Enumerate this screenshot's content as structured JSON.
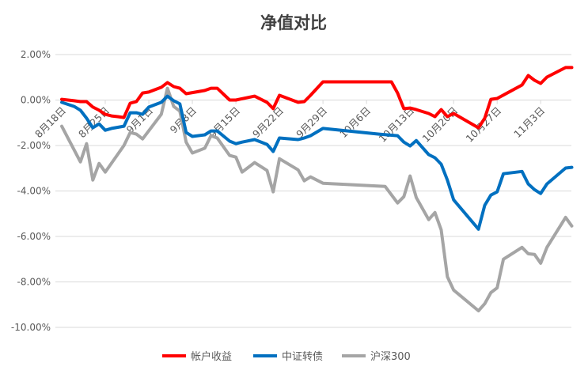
{
  "chart_data": {
    "type": "line",
    "title": "净值对比",
    "xlabel": "",
    "ylabel": "",
    "x_unit": "trading-day offset from 8月18日",
    "ylim": [
      -10,
      2
    ],
    "yticks": [
      2,
      0,
      -2,
      -4,
      -6,
      -8,
      -10
    ],
    "ytick_labels": [
      "2.00%",
      "0.00%",
      "-2.00%",
      "-4.00%",
      "-6.00%",
      "-8.00%",
      "-10.00%"
    ],
    "xlim": [
      -1,
      82.5
    ],
    "xticks": [
      0,
      7,
      14,
      21,
      28,
      35,
      42,
      49,
      56,
      63,
      70,
      77
    ],
    "xtick_labels": [
      "8月18日",
      "8月25日",
      "9月1日",
      "9月8日",
      "9月15日",
      "9月22日",
      "9月29日",
      "10月6日",
      "10月13日",
      "10月20日",
      "10月27日",
      "11月3日"
    ],
    "grid": true,
    "legend_position": "bottom",
    "series": [
      {
        "name": "帐户收益",
        "color": "#ff0000",
        "points": [
          [
            0,
            0.03
          ],
          [
            2,
            -0.03
          ],
          [
            3,
            -0.07
          ],
          [
            4,
            -0.07
          ],
          [
            5,
            -0.31
          ],
          [
            6,
            -0.45
          ],
          [
            7,
            -0.63
          ],
          [
            8,
            -0.7
          ],
          [
            9,
            -0.73
          ],
          [
            10,
            -0.77
          ],
          [
            11,
            -0.14
          ],
          [
            12,
            -0.07
          ],
          [
            13,
            0.31
          ],
          [
            14,
            0.35
          ],
          [
            16,
            0.56
          ],
          [
            17,
            0.77
          ],
          [
            18,
            0.59
          ],
          [
            19,
            0.52
          ],
          [
            20,
            0.28
          ],
          [
            23,
            0.42
          ],
          [
            24,
            0.52
          ],
          [
            25,
            0.52
          ],
          [
            27,
            0.0
          ],
          [
            28,
            0.0
          ],
          [
            31,
            0.17
          ],
          [
            33,
            -0.1
          ],
          [
            34,
            -0.38
          ],
          [
            35,
            0.21
          ],
          [
            38,
            -0.1
          ],
          [
            39,
            -0.07
          ],
          [
            40,
            0.21
          ],
          [
            42,
            0.8
          ],
          [
            53,
            0.8
          ],
          [
            54,
            0.31
          ],
          [
            55,
            -0.38
          ],
          [
            56,
            -0.35
          ],
          [
            57,
            -0.42
          ],
          [
            59,
            -0.59
          ],
          [
            60,
            -0.73
          ],
          [
            61,
            -0.42
          ],
          [
            62,
            -0.73
          ],
          [
            63,
            -0.59
          ],
          [
            67,
            -1.22
          ],
          [
            68,
            -0.8
          ],
          [
            69,
            0.03
          ],
          [
            70,
            0.07
          ],
          [
            74,
            0.66
          ],
          [
            75,
            1.08
          ],
          [
            76,
            0.87
          ],
          [
            77,
            0.73
          ],
          [
            78,
            1.01
          ],
          [
            81,
            1.43
          ],
          [
            82,
            1.43
          ]
        ]
      },
      {
        "name": "中证转债",
        "color": "#0070c0",
        "points": [
          [
            0,
            -0.1
          ],
          [
            2,
            -0.28
          ],
          [
            3,
            -0.45
          ],
          [
            4,
            -0.8
          ],
          [
            5,
            -1.22
          ],
          [
            6,
            -1.05
          ],
          [
            7,
            -1.33
          ],
          [
            8,
            -1.25
          ],
          [
            10,
            -1.15
          ],
          [
            11,
            -0.56
          ],
          [
            12,
            -0.56
          ],
          [
            13,
            -0.63
          ],
          [
            14,
            -0.31
          ],
          [
            16,
            -0.1
          ],
          [
            17,
            0.17
          ],
          [
            18,
            -0.03
          ],
          [
            19,
            -0.17
          ],
          [
            20,
            -1.43
          ],
          [
            21,
            -1.6
          ],
          [
            23,
            -1.53
          ],
          [
            24,
            -1.36
          ],
          [
            25,
            -1.36
          ],
          [
            27,
            -1.81
          ],
          [
            28,
            -1.92
          ],
          [
            29,
            -1.85
          ],
          [
            31,
            -1.74
          ],
          [
            33,
            -1.95
          ],
          [
            34,
            -2.26
          ],
          [
            35,
            -1.67
          ],
          [
            38,
            -1.74
          ],
          [
            39,
            -1.67
          ],
          [
            40,
            -1.57
          ],
          [
            42,
            -1.25
          ],
          [
            51,
            -1.5
          ],
          [
            54,
            -1.57
          ],
          [
            55,
            -1.85
          ],
          [
            56,
            -2.02
          ],
          [
            57,
            -1.78
          ],
          [
            59,
            -2.4
          ],
          [
            60,
            -2.54
          ],
          [
            61,
            -2.82
          ],
          [
            62,
            -3.52
          ],
          [
            63,
            -4.39
          ],
          [
            67,
            -5.68
          ],
          [
            68,
            -4.63
          ],
          [
            69,
            -4.18
          ],
          [
            70,
            -4.04
          ],
          [
            71,
            -3.24
          ],
          [
            74,
            -3.14
          ],
          [
            75,
            -3.69
          ],
          [
            76,
            -3.94
          ],
          [
            77,
            -4.11
          ],
          [
            78,
            -3.69
          ],
          [
            81,
            -2.99
          ],
          [
            82,
            -2.96
          ]
        ]
      },
      {
        "name": "沪深300",
        "color": "#a5a5a5",
        "points": [
          [
            0,
            -1.15
          ],
          [
            3,
            -2.72
          ],
          [
            4,
            -1.92
          ],
          [
            5,
            -3.52
          ],
          [
            6,
            -2.79
          ],
          [
            7,
            -3.17
          ],
          [
            10,
            -2.0
          ],
          [
            11,
            -1.43
          ],
          [
            12,
            -1.5
          ],
          [
            13,
            -1.71
          ],
          [
            16,
            -0.63
          ],
          [
            17,
            0.52
          ],
          [
            18,
            -0.28
          ],
          [
            19,
            -0.49
          ],
          [
            20,
            -1.85
          ],
          [
            21,
            -2.33
          ],
          [
            23,
            -2.12
          ],
          [
            24,
            -1.57
          ],
          [
            25,
            -1.67
          ],
          [
            27,
            -2.44
          ],
          [
            28,
            -2.51
          ],
          [
            29,
            -3.17
          ],
          [
            31,
            -2.75
          ],
          [
            33,
            -3.1
          ],
          [
            34,
            -4.04
          ],
          [
            35,
            -2.58
          ],
          [
            38,
            -3.07
          ],
          [
            39,
            -3.55
          ],
          [
            40,
            -3.38
          ],
          [
            42,
            -3.66
          ],
          [
            52,
            -3.8
          ],
          [
            54,
            -4.53
          ],
          [
            55,
            -4.25
          ],
          [
            56,
            -3.34
          ],
          [
            57,
            -4.29
          ],
          [
            59,
            -5.26
          ],
          [
            60,
            -4.95
          ],
          [
            61,
            -5.71
          ],
          [
            62,
            -7.77
          ],
          [
            63,
            -8.36
          ],
          [
            67,
            -9.27
          ],
          [
            68,
            -8.96
          ],
          [
            69,
            -8.47
          ],
          [
            70,
            -8.26
          ],
          [
            71,
            -7.0
          ],
          [
            74,
            -6.48
          ],
          [
            75,
            -6.76
          ],
          [
            76,
            -6.79
          ],
          [
            77,
            -7.18
          ],
          [
            78,
            -6.48
          ],
          [
            81,
            -5.16
          ],
          [
            82,
            -5.54
          ]
        ]
      }
    ]
  }
}
